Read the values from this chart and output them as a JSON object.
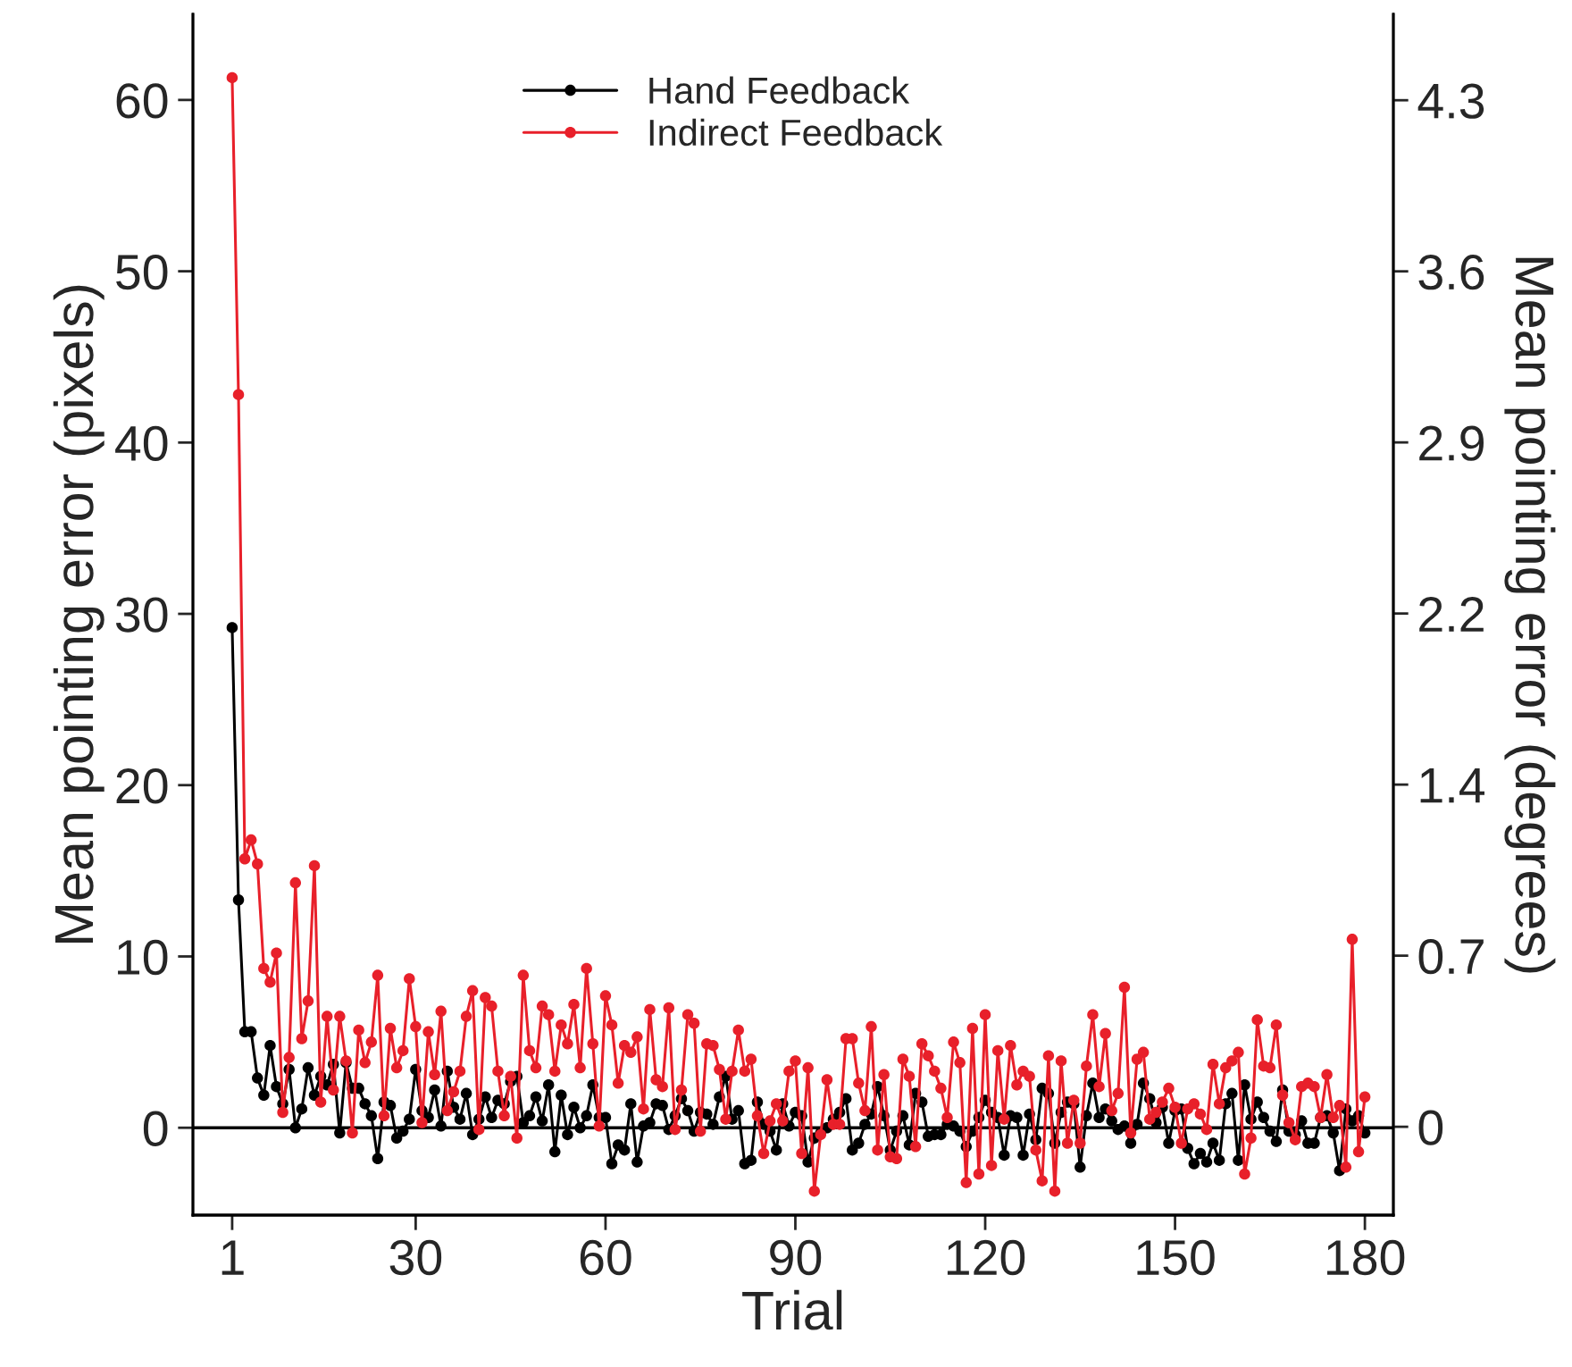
{
  "chart_data": {
    "type": "line",
    "xlabel": "Trial",
    "ylabel": "Mean pointing error (pixels)",
    "y2label": "Mean pointing error (degrees)",
    "x": [
      1,
      2,
      3,
      4,
      5,
      6,
      7,
      8,
      9,
      10,
      11,
      12,
      13,
      14,
      15,
      16,
      17,
      18,
      19,
      20,
      21,
      22,
      23,
      24,
      25,
      26,
      27,
      28,
      29,
      30,
      31,
      32,
      33,
      34,
      35,
      36,
      37,
      38,
      39,
      40,
      41,
      42,
      43,
      44,
      45,
      46,
      47,
      48,
      49,
      50,
      51,
      52,
      53,
      54,
      55,
      56,
      57,
      58,
      59,
      60,
      61,
      62,
      63,
      64,
      65,
      66,
      67,
      68,
      69,
      70,
      71,
      72,
      73,
      74,
      75,
      76,
      77,
      78,
      79,
      80,
      81,
      82,
      83,
      84,
      85,
      86,
      87,
      88,
      89,
      90,
      91,
      92,
      93,
      94,
      95,
      96,
      97,
      98,
      99,
      100,
      101,
      102,
      103,
      104,
      105,
      106,
      107,
      108,
      109,
      110,
      111,
      112,
      113,
      114,
      115,
      116,
      117,
      118,
      119,
      120,
      121,
      122,
      123,
      124,
      125,
      126,
      127,
      128,
      129,
      130,
      131,
      132,
      133,
      134,
      135,
      136,
      137,
      138,
      139,
      140,
      141,
      142,
      143,
      144,
      145,
      146,
      147,
      148,
      149,
      150,
      151,
      152,
      153,
      154,
      155,
      156,
      157,
      158,
      159,
      160,
      161,
      162,
      163,
      164,
      165,
      166,
      167,
      168,
      169,
      170,
      171,
      172,
      173,
      174,
      175,
      176,
      177,
      178,
      179,
      180
    ],
    "series": [
      {
        "name": "Hand Feedback",
        "color": "#000000",
        "values": [
          29.2,
          13.3,
          5.6,
          5.6,
          2.9,
          1.9,
          4.8,
          2.4,
          1.4,
          3.4,
          0.0,
          1.1,
          3.5,
          1.9,
          3.0,
          2.5,
          3.7,
          -0.3,
          3.8,
          2.3,
          2.3,
          1.4,
          0.7,
          -1.8,
          1.5,
          1.3,
          -0.6,
          -0.2,
          0.5,
          3.4,
          1.0,
          0.6,
          2.2,
          0.1,
          3.3,
          1.2,
          0.5,
          2.0,
          -0.4,
          0.5,
          1.8,
          0.6,
          1.6,
          1.4,
          2.7,
          3.0,
          0.3,
          0.7,
          1.8,
          0.4,
          2.5,
          -1.4,
          1.9,
          -0.4,
          1.2,
          0.0,
          0.7,
          2.5,
          0.6,
          0.6,
          -2.1,
          -1.0,
          -1.3,
          1.4,
          -2.0,
          0.1,
          0.3,
          1.4,
          1.3,
          -0.1,
          0.7,
          1.7,
          1.0,
          -0.2,
          0.9,
          0.8,
          0.2,
          1.8,
          3.0,
          0.5,
          1.0,
          -2.1,
          -1.9,
          1.5,
          0.2,
          -0.2,
          -1.3,
          1.4,
          0.1,
          0.9,
          0.7,
          -2.0,
          -0.6,
          -0.3,
          0.0,
          0.5,
          0.9,
          1.7,
          -1.3,
          -0.9,
          0.2,
          0.8,
          2.4,
          0.7,
          -1.3,
          -0.2,
          0.7,
          -1.0,
          2.0,
          1.5,
          -0.5,
          -0.4,
          -0.4,
          0.2,
          0.1,
          -0.2,
          -1.1,
          -0.2,
          0.6,
          1.6,
          0.9,
          0.6,
          -1.6,
          0.7,
          0.6,
          -1.6,
          0.8,
          -0.7,
          2.3,
          2.0,
          -0.9,
          0.9,
          1.5,
          1.4,
          -2.3,
          0.7,
          2.6,
          0.6,
          1.1,
          0.4,
          -0.1,
          0.1,
          -0.9,
          0.2,
          2.6,
          1.7,
          0.3,
          1.2,
          -0.9,
          1.0,
          1.1,
          -1.2,
          -2.1,
          -1.5,
          -2.0,
          -0.9,
          -1.9,
          1.4,
          2.0,
          -1.9,
          2.5,
          0.5,
          1.5,
          0.6,
          -0.2,
          -0.8,
          2.2,
          -0.2,
          -0.4,
          0.4,
          -0.9,
          -0.9,
          0.6,
          0.7,
          -0.3,
          -2.5,
          1.1,
          0.4,
          0.7,
          -0.3
        ]
      },
      {
        "name": "Indirect Feedback",
        "color": "#e8202a",
        "values": [
          61.3,
          42.8,
          15.7,
          16.8,
          15.4,
          9.3,
          8.5,
          10.2,
          0.9,
          4.1,
          14.3,
          5.2,
          7.4,
          15.3,
          1.5,
          6.5,
          2.2,
          6.5,
          3.9,
          -0.3,
          5.7,
          3.8,
          5.0,
          8.9,
          0.7,
          5.8,
          3.5,
          4.5,
          8.7,
          5.9,
          0.3,
          5.6,
          3.1,
          6.8,
          1.0,
          2.1,
          3.3,
          6.5,
          8.0,
          -0.1,
          7.6,
          7.1,
          3.3,
          0.7,
          3.0,
          -0.6,
          8.9,
          4.5,
          3.5,
          7.1,
          6.6,
          3.3,
          6.0,
          4.9,
          7.2,
          3.5,
          9.3,
          4.9,
          0.1,
          7.7,
          6.0,
          2.6,
          4.8,
          4.4,
          5.3,
          1.1,
          6.9,
          2.8,
          2.4,
          7.0,
          -0.1,
          2.2,
          6.6,
          6.1,
          -0.2,
          4.9,
          4.8,
          3.4,
          0.5,
          3.3,
          5.7,
          3.3,
          4.0,
          0.7,
          -1.5,
          0.4,
          1.4,
          0.4,
          3.3,
          3.9,
          -1.5,
          3.5,
          -3.7,
          -0.4,
          2.8,
          0.2,
          0.2,
          5.2,
          5.2,
          2.6,
          1.0,
          5.9,
          -1.3,
          3.1,
          -1.7,
          -1.8,
          4.0,
          3.0,
          -1.1,
          4.9,
          4.2,
          3.3,
          2.3,
          0.6,
          5.0,
          3.8,
          -3.2,
          5.8,
          -2.7,
          6.6,
          -2.2,
          4.5,
          0.5,
          4.8,
          2.5,
          3.3,
          3.0,
          -1.3,
          -3.1,
          4.2,
          -3.7,
          3.9,
          -0.9,
          1.6,
          -0.9,
          3.6,
          6.6,
          2.4,
          5.5,
          1.0,
          2.0,
          8.2,
          -0.3,
          4.0,
          4.4,
          0.5,
          0.9,
          1.5,
          2.3,
          1.2,
          -0.9,
          1.1,
          1.4,
          0.8,
          -0.1,
          3.7,
          1.4,
          3.5,
          3.9,
          4.4,
          -2.7,
          -0.6,
          6.3,
          3.6,
          3.5,
          6.0,
          1.9,
          0.3,
          -0.7,
          2.4,
          2.6,
          2.4,
          0.6,
          3.1,
          0.6,
          1.3,
          -2.3,
          11.0,
          -1.4,
          1.8
        ]
      }
    ],
    "xlim": [
      -5.2,
      184.5
    ],
    "xticks": [
      1,
      30,
      60,
      90,
      120,
      150,
      180
    ],
    "ylim": [
      -5.1,
      65
    ],
    "yticks": [
      0,
      10,
      20,
      30,
      40,
      50,
      60
    ],
    "y2lim": [
      -0.37,
      4.66
    ],
    "y2ticks": [
      {
        "value": 0,
        "label": "0"
      },
      {
        "value": 0.7167,
        "label": "0.7"
      },
      {
        "value": 1.4333,
        "label": "1.4"
      },
      {
        "value": 2.15,
        "label": "2.2"
      },
      {
        "value": 2.8667,
        "label": "2.9"
      },
      {
        "value": 3.5833,
        "label": "3.6"
      },
      {
        "value": 4.3,
        "label": "4.3"
      }
    ],
    "ref_lines": [
      {
        "axis": "y",
        "value": 0,
        "color": "#000000"
      }
    ],
    "marker": "circle",
    "line_style": "solid",
    "grid": false,
    "legend": "top"
  }
}
